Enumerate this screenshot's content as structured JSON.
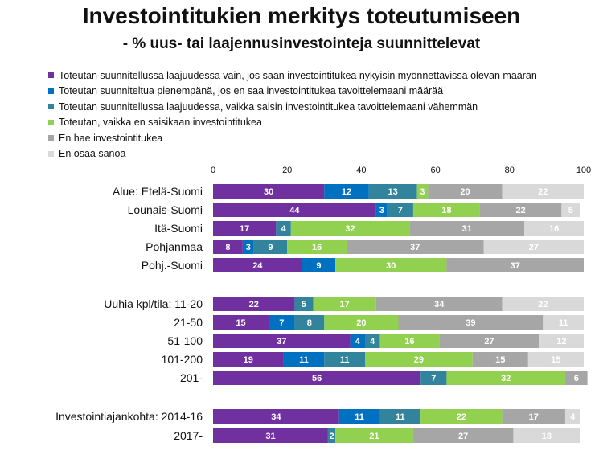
{
  "chart_data": {
    "type": "bar",
    "orientation": "horizontal",
    "stacked": true,
    "title": "Investointitukien merkitys toteutumiseen",
    "subtitle": "- % uus- tai laajennusinvestointeja suunnittelevat",
    "xlim": [
      0,
      100
    ],
    "xticks": [
      0,
      20,
      40,
      60,
      80,
      100
    ],
    "legend_position": "top-left",
    "grid": false,
    "categories": [
      "Alue: Etelä-Suomi",
      "Lounais-Suomi",
      "Itä-Suomi",
      "Pohjanmaa",
      "Pohj.-Suomi",
      "Uuhia kpl/tila: 11-20",
      "21-50",
      "51-100",
      "101-200",
      "201-",
      "Investointiajankohta: 2014-16",
      "2017-"
    ],
    "series": [
      {
        "name": "Toteutan suunnitellussa laajuudessa vain, jos saan investointitukea nykyisin myönnettävissä olevan määrän",
        "color": "#7030a0",
        "label_color": "#ffffff",
        "values": [
          30,
          44,
          17,
          8,
          24,
          22,
          15,
          37,
          19,
          56,
          34,
          31
        ]
      },
      {
        "name": "Toteutan suunniteltua pienempänä, jos en saa investointitukea tavoittelemaani määrää",
        "color": "#0070c0",
        "label_color": "#ffffff",
        "values": [
          12,
          3,
          0,
          3,
          9,
          0,
          7,
          4,
          11,
          0,
          11,
          0
        ]
      },
      {
        "name": "Toteutan suunnitellussa laajuudessa, vaikka saisin investointitukea tavoittelemaani vähemmän",
        "color": "#31849b",
        "label_color": "#ffffff",
        "values": [
          13,
          7,
          4,
          9,
          0,
          5,
          8,
          4,
          11,
          7,
          11,
          2
        ]
      },
      {
        "name": "Toteutan, vaikka en saisikaan investointitukea",
        "color": "#92d050",
        "label_color": "#ffffff",
        "values": [
          3,
          18,
          32,
          16,
          30,
          17,
          20,
          16,
          29,
          32,
          22,
          21
        ]
      },
      {
        "name": "En hae investointitukea",
        "color": "#a6a6a6",
        "label_color": "#ffffff",
        "values": [
          20,
          22,
          31,
          37,
          37,
          34,
          39,
          27,
          15,
          6,
          17,
          27
        ]
      },
      {
        "name": "En osaa sanoa",
        "color": "#d9d9d9",
        "label_color": "#ffffff",
        "values": [
          22,
          5,
          16,
          27,
          0,
          22,
          11,
          12,
          15,
          0,
          4,
          18
        ]
      }
    ]
  }
}
